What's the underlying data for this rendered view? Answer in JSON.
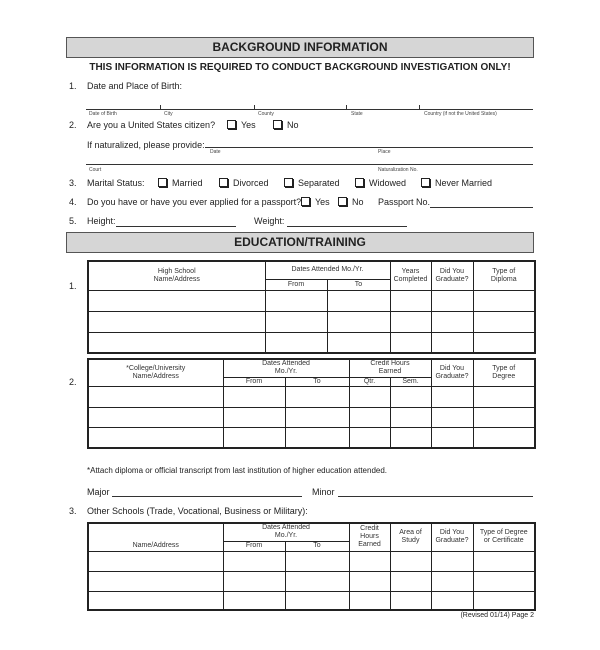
{
  "background": {
    "title": "BACKGROUND INFORMATION",
    "notice": "THIS INFORMATION IS REQUIRED TO CONDUCT BACKGROUND INVESTIGATION ONLY!",
    "q1": {
      "num": "1.",
      "label": "Date and Place of Birth:",
      "fields": [
        "Date of Birth",
        "City",
        "County",
        "State",
        "Country (if not the United States)"
      ]
    },
    "q2": {
      "num": "2.",
      "label": "Are you a United States citizen?",
      "yes": "Yes",
      "no": "No",
      "naturalized": "If naturalized, please provide:",
      "fields": [
        "Date",
        "Place",
        "Court",
        "Naturalization No."
      ]
    },
    "q3": {
      "num": "3.",
      "label": "Marital Status:",
      "options": [
        "Married",
        "Divorced",
        "Separated",
        "Widowed",
        "Never Married"
      ]
    },
    "q4": {
      "num": "4.",
      "label": "Do you have or have you ever applied for a passport?",
      "yes": "Yes",
      "no": "No",
      "passport": "Passport No."
    },
    "q5": {
      "num": "5.",
      "height": "Height:",
      "weight": "Weight:"
    }
  },
  "education": {
    "title": "EDUCATION/TRAINING",
    "t1": {
      "num": "1.",
      "name": "High School Name/Address",
      "dates": "Dates Attended Mo./Yr.",
      "from": "From",
      "to": "To",
      "years": "Years Completed",
      "grad": "Did You Graduate?",
      "type": "Type of Diploma"
    },
    "t2": {
      "num": "2.",
      "name": "*College/University Name/Address",
      "dates": "Dates Attended Mo./Yr.",
      "from": "From",
      "to": "To",
      "credit": "Credit Hours Earned",
      "qtr": "Qtr.",
      "sem": "Sem.",
      "grad": "Did You Graduate?",
      "type": "Type of Degree"
    },
    "note": "*Attach diploma or official transcript from last institution of higher education attended.",
    "major": "Major",
    "minor": "Minor",
    "q3": "3.",
    "q3_label": "Other Schools (Trade, Vocational, Business or Military):",
    "t3": {
      "name": "Name/Address",
      "dates": "Dates Attended Mo./Yr.",
      "from": "From",
      "to": "To",
      "credit": "Credit Hours Earned",
      "area": "Area of Study",
      "grad": "Did You Graduate?",
      "type": "Type of Degree or Certificate"
    }
  },
  "footer": "(Revised 01/14) Page 2"
}
